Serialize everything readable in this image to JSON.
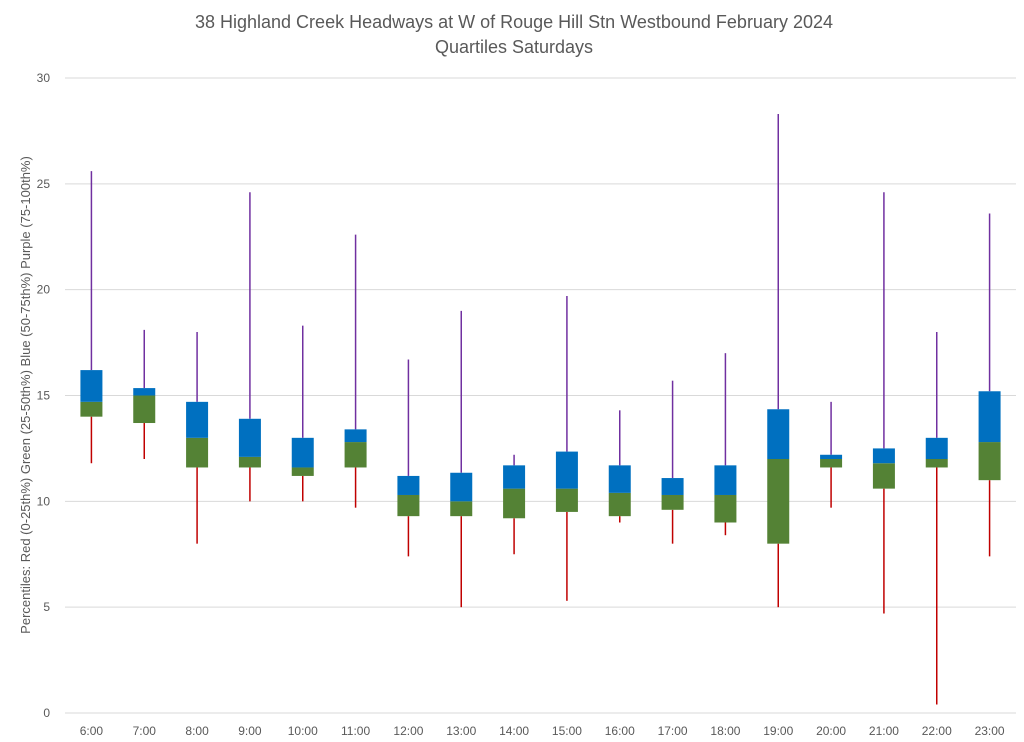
{
  "chart_data": {
    "type": "boxplot",
    "title": "38 Highland Creek Headways at W of Rouge Hill Stn Westbound February 2024",
    "subtitle": "Quartiles Saturdays",
    "xlabel": "",
    "ylabel": "Percentiles:  Red (0-25th%)  Green (25-50th%)  Blue (50-75th%)  Purple (75-100th%)",
    "ylim": [
      0,
      30
    ],
    "yticks": [
      0,
      5,
      10,
      15,
      20,
      25,
      30
    ],
    "grid": true,
    "legend": "none",
    "colors": {
      "min_to_q1_whisker": "#C00000",
      "q1_to_median_box": "#548235",
      "median_to_q3_box": "#0070C0",
      "q3_to_max_whisker": "#7030A0"
    },
    "categories": [
      "6:00",
      "7:00",
      "8:00",
      "9:00",
      "10:00",
      "11:00",
      "12:00",
      "13:00",
      "14:00",
      "15:00",
      "16:00",
      "17:00",
      "18:00",
      "19:00",
      "20:00",
      "21:00",
      "22:00",
      "23:00"
    ],
    "series": [
      {
        "name": "min",
        "values": [
          11.8,
          12.0,
          8.0,
          10.0,
          10.0,
          9.7,
          7.4,
          5.0,
          7.5,
          5.3,
          9.0,
          8.0,
          8.4,
          5.0,
          9.7,
          4.7,
          0.4,
          7.4
        ]
      },
      {
        "name": "q1",
        "values": [
          14.0,
          13.7,
          11.6,
          11.6,
          11.2,
          11.6,
          9.3,
          9.3,
          9.2,
          9.5,
          9.3,
          9.6,
          9.0,
          8.0,
          11.6,
          10.6,
          11.6,
          11.0
        ]
      },
      {
        "name": "median",
        "values": [
          14.7,
          15.0,
          13.0,
          12.1,
          11.6,
          12.8,
          10.3,
          10.0,
          10.6,
          10.6,
          10.4,
          10.3,
          10.3,
          12.0,
          12.0,
          11.8,
          12.0,
          12.8
        ]
      },
      {
        "name": "q3",
        "values": [
          16.2,
          15.35,
          14.7,
          13.9,
          13.0,
          13.4,
          11.2,
          11.35,
          11.7,
          12.35,
          11.7,
          11.1,
          11.7,
          14.35,
          12.2,
          12.5,
          13.0,
          15.2
        ]
      },
      {
        "name": "max",
        "values": [
          25.6,
          18.1,
          18.0,
          24.6,
          18.3,
          22.6,
          16.7,
          19.0,
          12.2,
          19.7,
          14.3,
          15.7,
          17.0,
          28.3,
          14.7,
          24.6,
          18.0,
          23.6
        ]
      }
    ]
  }
}
